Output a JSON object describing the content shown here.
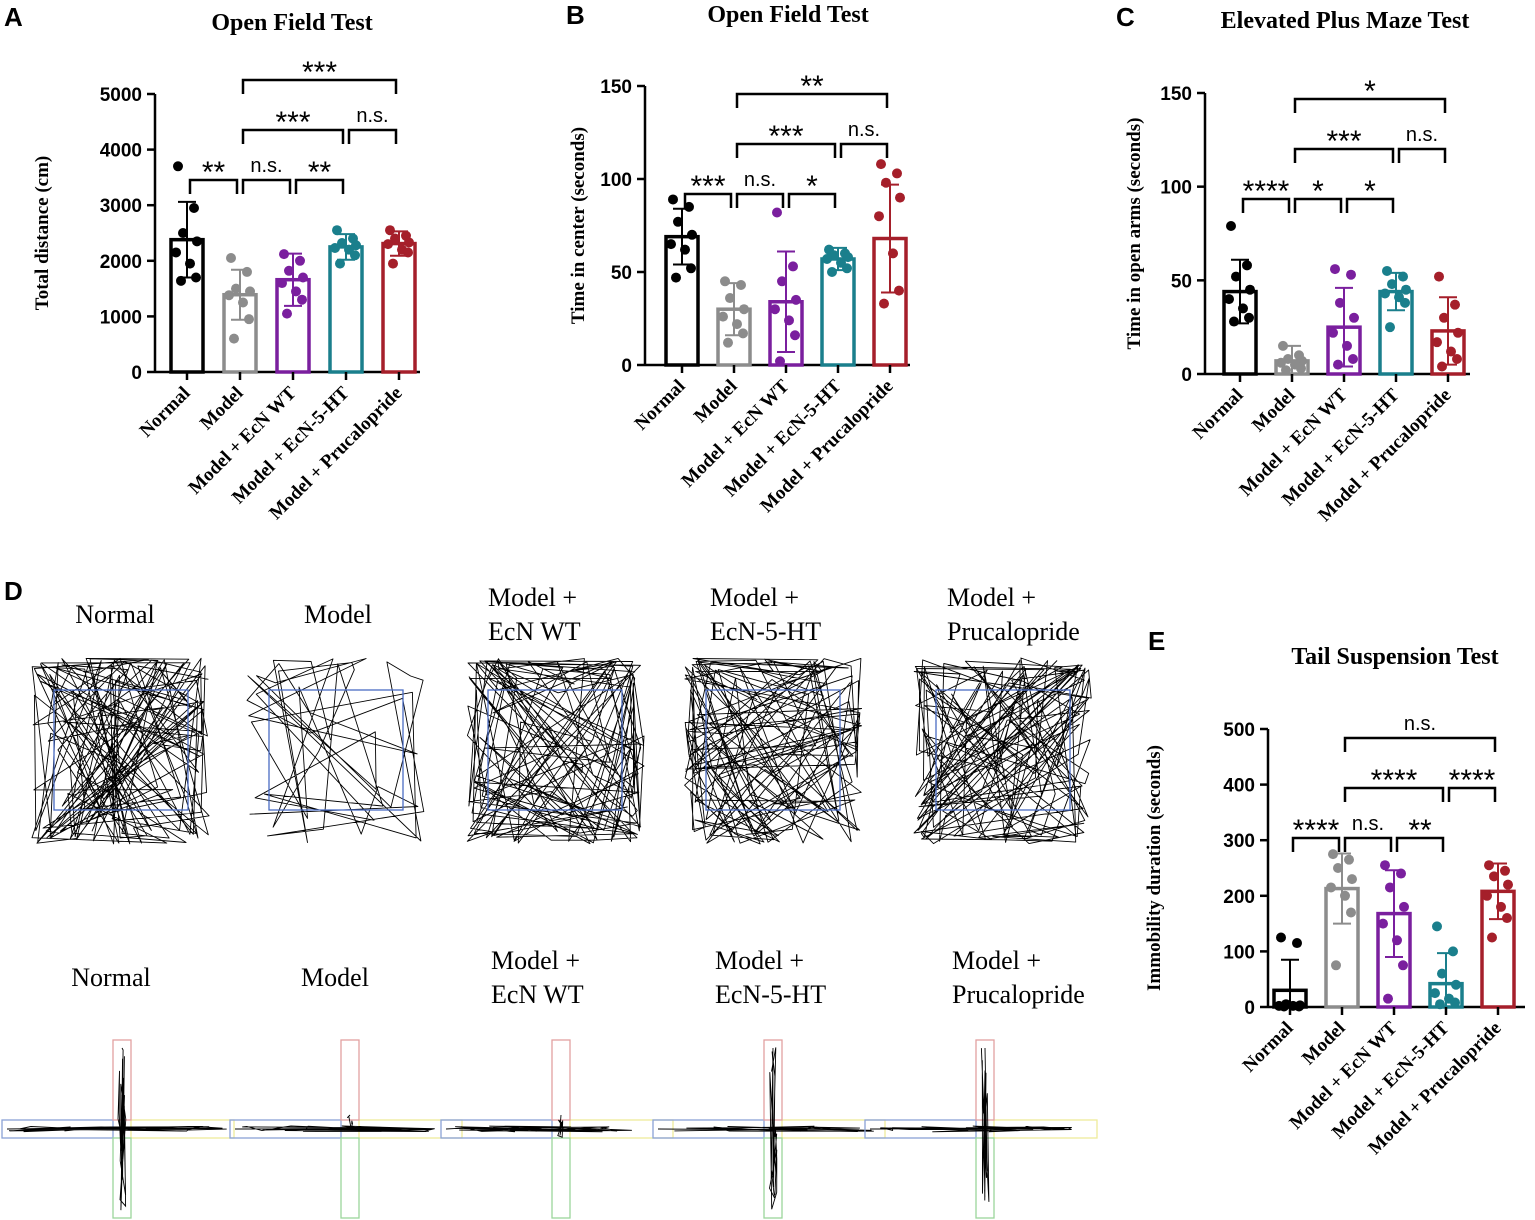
{
  "colors": {
    "normal": "#000000",
    "model": "#8c8c8c",
    "ecnwt": "#7a1f9e",
    "ecn5ht": "#1a7f8c",
    "prucalopride": "#a51f2a",
    "center_zone": "#4a6cc4",
    "arm_open": "#e2a0a0",
    "arm_closed_blue": "#8aa2d6",
    "arm_yellow": "#eeec9a",
    "arm_green": "#9bd69b"
  },
  "chart_data": [
    {
      "panel": "A",
      "type": "bar",
      "title": "Open Field Test",
      "ylabel": "Total distance (cm)",
      "xlabel": "",
      "ylim": [
        0,
        5000
      ],
      "yticks": [
        0,
        1000,
        2000,
        3000,
        4000,
        5000
      ],
      "categories": [
        "Normal",
        "Model",
        "Model + EcN WT",
        "Model + EcN-5-HT",
        "Model + Prucalopride"
      ],
      "values": [
        2380,
        1390,
        1660,
        2250,
        2310
      ],
      "sd": [
        680,
        450,
        470,
        230,
        220
      ],
      "points": [
        [
          3700,
          2950,
          2500,
          2350,
          2150,
          1950,
          1700,
          1640
        ],
        [
          2050,
          1800,
          1500,
          1450,
          1380,
          1250,
          950,
          600
        ],
        [
          2120,
          2000,
          1820,
          1700,
          1600,
          1450,
          1300,
          1050
        ],
        [
          2550,
          2400,
          2320,
          2280,
          2230,
          2200,
          2100,
          1950
        ],
        [
          2550,
          2450,
          2400,
          2330,
          2300,
          2200,
          2150,
          1950
        ]
      ],
      "annotations": [
        {
          "from": 0,
          "to": 1,
          "level": 0,
          "label": "**"
        },
        {
          "from": 1,
          "to": 2,
          "level": 0,
          "label": "n.s."
        },
        {
          "from": 2,
          "to": 3,
          "level": 0,
          "label": "**"
        },
        {
          "from": 1,
          "to": 3,
          "level": 1,
          "label": "***"
        },
        {
          "from": 3,
          "to": 4,
          "level": 1,
          "label": "n.s."
        },
        {
          "from": 1,
          "to": 4,
          "level": 2,
          "label": "***"
        }
      ]
    },
    {
      "panel": "B",
      "type": "bar",
      "title": "Open Field Test",
      "ylabel": "Time in center (seconds)",
      "xlabel": "",
      "ylim": [
        0,
        150
      ],
      "yticks": [
        0,
        50,
        100,
        150
      ],
      "categories": [
        "Normal",
        "Model",
        "Model + EcN WT",
        "Model + EcN-5-HT",
        "Model + Prucalopride"
      ],
      "values": [
        69,
        30,
        34,
        57,
        68
      ],
      "sd": [
        15,
        14,
        27,
        6,
        29
      ],
      "points": [
        [
          89,
          85,
          77,
          70,
          65,
          62,
          52,
          47
        ],
        [
          45,
          43,
          36,
          30,
          26,
          22,
          17,
          12
        ],
        [
          82,
          53,
          45,
          35,
          30,
          24,
          16,
          2
        ],
        [
          62,
          60,
          59,
          58,
          57,
          55,
          52,
          50
        ],
        [
          108,
          103,
          98,
          90,
          80,
          60,
          40,
          33
        ]
      ],
      "annotations": [
        {
          "from": 0,
          "to": 1,
          "level": 0,
          "label": "***"
        },
        {
          "from": 1,
          "to": 2,
          "level": 0,
          "label": "n.s."
        },
        {
          "from": 2,
          "to": 3,
          "level": 0,
          "label": "*"
        },
        {
          "from": 1,
          "to": 3,
          "level": 1,
          "label": "***"
        },
        {
          "from": 3,
          "to": 4,
          "level": 1,
          "label": "n.s."
        },
        {
          "from": 1,
          "to": 4,
          "level": 2,
          "label": "**"
        }
      ]
    },
    {
      "panel": "C",
      "type": "bar",
      "title": "Elevated Plus Maze Test",
      "ylabel": "Time in open arms (seconds)",
      "xlabel": "",
      "ylim": [
        0,
        150
      ],
      "yticks": [
        0,
        50,
        100,
        150
      ],
      "categories": [
        "Normal",
        "Model",
        "Model + EcN WT",
        "Model + EcN-5-HT",
        "Model + Prucalopride"
      ],
      "values": [
        44,
        7,
        25,
        44,
        23
      ],
      "sd": [
        17,
        8,
        21,
        10,
        18
      ],
      "points": [
        [
          79,
          58,
          52,
          45,
          40,
          35,
          30,
          28
        ],
        [
          15,
          10,
          8,
          7,
          6,
          5,
          3,
          2
        ],
        [
          56,
          53,
          38,
          30,
          22,
          15,
          8,
          5
        ],
        [
          55,
          52,
          48,
          45,
          43,
          41,
          38,
          25
        ],
        [
          52,
          37,
          30,
          22,
          17,
          12,
          8,
          4
        ]
      ],
      "annotations": [
        {
          "from": 0,
          "to": 1,
          "level": 0,
          "label": "****"
        },
        {
          "from": 1,
          "to": 2,
          "level": 0,
          "label": "*"
        },
        {
          "from": 2,
          "to": 3,
          "level": 0,
          "label": "*"
        },
        {
          "from": 1,
          "to": 3,
          "level": 1,
          "label": "***"
        },
        {
          "from": 3,
          "to": 4,
          "level": 1,
          "label": "n.s."
        },
        {
          "from": 1,
          "to": 4,
          "level": 2,
          "label": "*"
        }
      ]
    },
    {
      "panel": "E",
      "type": "bar",
      "title": "Tail Suspension Test",
      "ylabel": "Immobility duration (seconds)",
      "xlabel": "",
      "ylim": [
        0,
        500
      ],
      "yticks": [
        0,
        100,
        200,
        300,
        400,
        500
      ],
      "categories": [
        "Normal",
        "Model",
        "Model + EcN WT",
        "Model + EcN-5-HT",
        "Model + Prucalopride"
      ],
      "values": [
        30,
        213,
        168,
        42,
        208
      ],
      "sd": [
        55,
        63,
        78,
        55,
        50
      ],
      "points": [
        [
          125,
          115,
          5,
          3,
          2,
          2,
          1,
          1
        ],
        [
          275,
          265,
          250,
          230,
          215,
          200,
          170,
          75
        ],
        [
          255,
          240,
          215,
          180,
          150,
          120,
          75,
          15
        ],
        [
          145,
          100,
          60,
          40,
          25,
          15,
          8,
          5
        ],
        [
          255,
          245,
          235,
          220,
          200,
          180,
          160,
          125
        ]
      ],
      "annotations": [
        {
          "from": 0,
          "to": 1,
          "level": 0,
          "label": "****"
        },
        {
          "from": 1,
          "to": 2,
          "level": 0,
          "label": "n.s."
        },
        {
          "from": 2,
          "to": 3,
          "level": 0,
          "label": "**"
        },
        {
          "from": 1,
          "to": 3,
          "level": 1,
          "label": "****"
        },
        {
          "from": 3,
          "to": 4,
          "level": 1,
          "label": "****"
        },
        {
          "from": 1,
          "to": 4,
          "level": 2,
          "label": "n.s."
        }
      ]
    }
  ],
  "panels": {
    "a": "A",
    "b": "B",
    "c": "C",
    "d": "D",
    "e": "E"
  },
  "trace_panel": {
    "open_field_labels": [
      [
        "Normal"
      ],
      [
        "Model"
      ],
      [
        "Model +",
        "EcN WT"
      ],
      [
        "Model +",
        "EcN-5-HT"
      ],
      [
        "Model +",
        "Prucalopride"
      ]
    ],
    "plus_maze_labels": [
      [
        "Normal"
      ],
      [
        "Model"
      ],
      [
        "Model +",
        "EcN WT"
      ],
      [
        "Model +",
        "EcN-5-HT"
      ],
      [
        "Model +",
        "Prucalopride"
      ]
    ]
  }
}
